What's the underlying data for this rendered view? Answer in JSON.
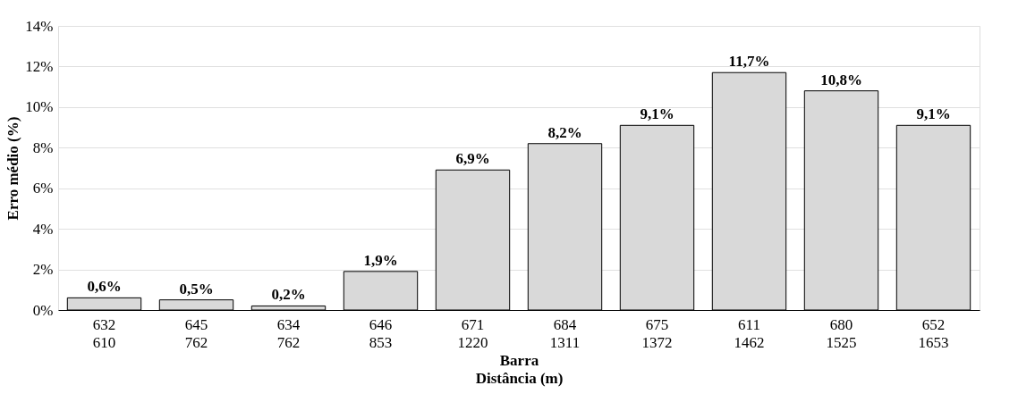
{
  "chart_data": {
    "type": "bar",
    "categories": [
      "632\n610",
      "645\n762",
      "634\n762",
      "646\n853",
      "671\n1220",
      "684\n1311",
      "675\n1372",
      "611\n1462",
      "680\n1525",
      "652\n1653"
    ],
    "values": [
      0.6,
      0.5,
      0.2,
      1.9,
      6.9,
      8.2,
      9.1,
      11.7,
      10.8,
      9.1
    ],
    "value_labels": [
      "0,6%",
      "0,5%",
      "0,2%",
      "1,9%",
      "6,9%",
      "8,2%",
      "9,1%",
      "11,7%",
      "10,8%",
      "9,1%"
    ],
    "color": "#d9d9d9",
    "xlabel": "Barra\nDistância (m)",
    "ylabel": "Erro médio (%)",
    "ylim": [
      0,
      14
    ],
    "yticks": [
      {
        "value": 0,
        "label": "0%"
      },
      {
        "value": 2,
        "label": "2%"
      },
      {
        "value": 4,
        "label": "4%"
      },
      {
        "value": 6,
        "label": "6%"
      },
      {
        "value": 8,
        "label": "8%"
      },
      {
        "value": 10,
        "label": "10%"
      },
      {
        "value": 12,
        "label": "12%"
      },
      {
        "value": 14,
        "label": "14%"
      }
    ],
    "grid": "y"
  }
}
